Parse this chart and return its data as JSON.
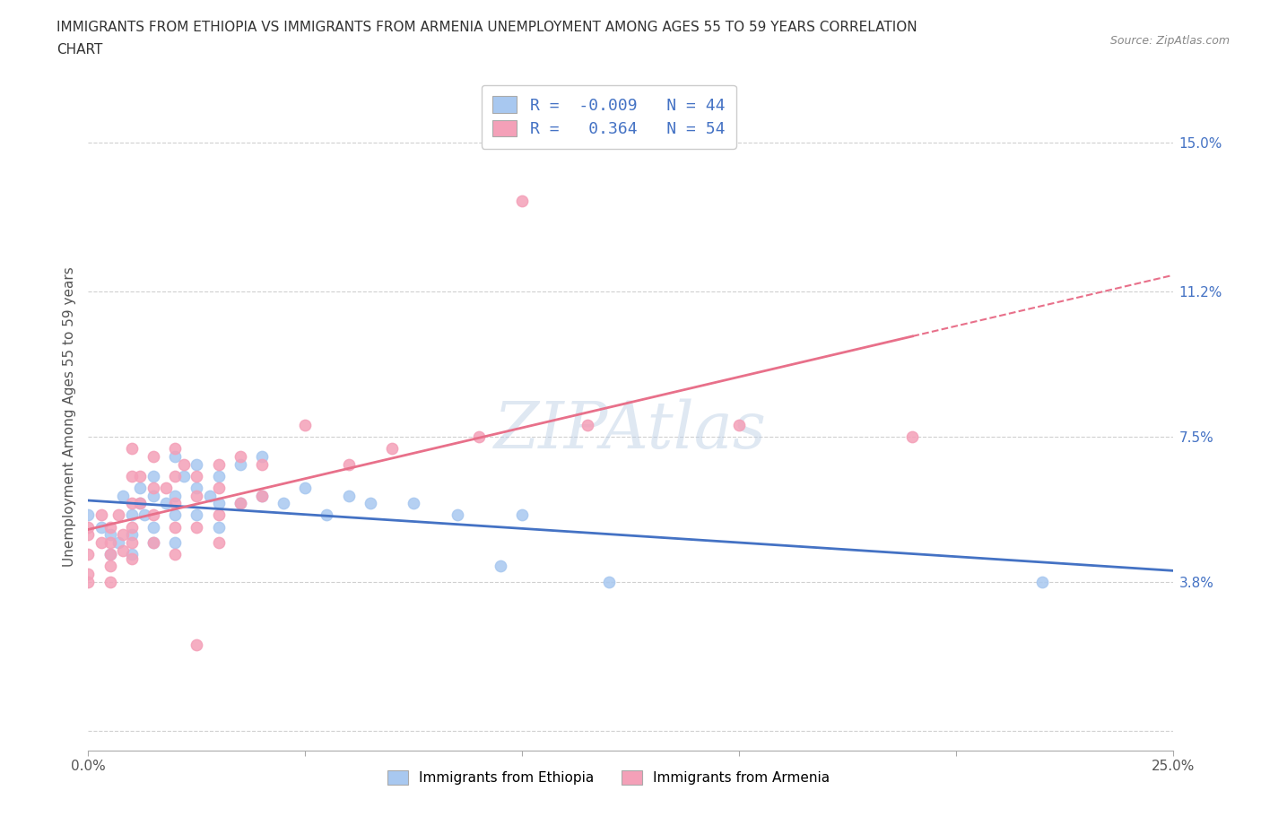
{
  "title_line1": "IMMIGRANTS FROM ETHIOPIA VS IMMIGRANTS FROM ARMENIA UNEMPLOYMENT AMONG AGES 55 TO 59 YEARS CORRELATION",
  "title_line2": "CHART",
  "source": "Source: ZipAtlas.com",
  "ylabel": "Unemployment Among Ages 55 to 59 years",
  "xlim": [
    0.0,
    0.25
  ],
  "ylim": [
    -0.005,
    0.165
  ],
  "xticks": [
    0.0,
    0.05,
    0.1,
    0.15,
    0.2,
    0.25
  ],
  "xticklabels": [
    "0.0%",
    "",
    "",
    "",
    "",
    "25.0%"
  ],
  "ytick_positions": [
    0.0,
    0.038,
    0.075,
    0.112,
    0.15
  ],
  "ytick_labels": [
    "",
    "3.8%",
    "7.5%",
    "11.2%",
    "15.0%"
  ],
  "ethiopia_color": "#a8c8f0",
  "armenia_color": "#f4a0b8",
  "ethiopia_line_color": "#4472c4",
  "armenia_line_color": "#e8708a",
  "ethiopia_R": -0.009,
  "ethiopia_N": 44,
  "armenia_R": 0.364,
  "armenia_N": 54,
  "watermark": "ZIPAtlas",
  "grid_color": "#d0d0d0",
  "ethiopia_scatter": [
    [
      0.0,
      0.055
    ],
    [
      0.003,
      0.052
    ],
    [
      0.005,
      0.05
    ],
    [
      0.005,
      0.045
    ],
    [
      0.007,
      0.048
    ],
    [
      0.008,
      0.06
    ],
    [
      0.01,
      0.055
    ],
    [
      0.01,
      0.05
    ],
    [
      0.01,
      0.045
    ],
    [
      0.012,
      0.062
    ],
    [
      0.012,
      0.058
    ],
    [
      0.013,
      0.055
    ],
    [
      0.015,
      0.065
    ],
    [
      0.015,
      0.06
    ],
    [
      0.015,
      0.052
    ],
    [
      0.015,
      0.048
    ],
    [
      0.018,
      0.058
    ],
    [
      0.02,
      0.07
    ],
    [
      0.02,
      0.06
    ],
    [
      0.02,
      0.055
    ],
    [
      0.02,
      0.048
    ],
    [
      0.022,
      0.065
    ],
    [
      0.025,
      0.068
    ],
    [
      0.025,
      0.062
    ],
    [
      0.025,
      0.055
    ],
    [
      0.028,
      0.06
    ],
    [
      0.03,
      0.065
    ],
    [
      0.03,
      0.058
    ],
    [
      0.03,
      0.052
    ],
    [
      0.035,
      0.068
    ],
    [
      0.035,
      0.058
    ],
    [
      0.04,
      0.07
    ],
    [
      0.04,
      0.06
    ],
    [
      0.045,
      0.058
    ],
    [
      0.05,
      0.062
    ],
    [
      0.055,
      0.055
    ],
    [
      0.06,
      0.06
    ],
    [
      0.065,
      0.058
    ],
    [
      0.075,
      0.058
    ],
    [
      0.085,
      0.055
    ],
    [
      0.095,
      0.042
    ],
    [
      0.1,
      0.055
    ],
    [
      0.12,
      0.038
    ],
    [
      0.22,
      0.038
    ]
  ],
  "armenia_scatter": [
    [
      0.0,
      0.052
    ],
    [
      0.0,
      0.05
    ],
    [
      0.0,
      0.045
    ],
    [
      0.0,
      0.04
    ],
    [
      0.0,
      0.038
    ],
    [
      0.003,
      0.055
    ],
    [
      0.003,
      0.048
    ],
    [
      0.005,
      0.052
    ],
    [
      0.005,
      0.048
    ],
    [
      0.005,
      0.045
    ],
    [
      0.005,
      0.042
    ],
    [
      0.005,
      0.038
    ],
    [
      0.007,
      0.055
    ],
    [
      0.008,
      0.05
    ],
    [
      0.008,
      0.046
    ],
    [
      0.01,
      0.072
    ],
    [
      0.01,
      0.065
    ],
    [
      0.01,
      0.058
    ],
    [
      0.01,
      0.052
    ],
    [
      0.01,
      0.048
    ],
    [
      0.01,
      0.044
    ],
    [
      0.012,
      0.065
    ],
    [
      0.012,
      0.058
    ],
    [
      0.015,
      0.07
    ],
    [
      0.015,
      0.062
    ],
    [
      0.015,
      0.055
    ],
    [
      0.015,
      0.048
    ],
    [
      0.018,
      0.062
    ],
    [
      0.02,
      0.072
    ],
    [
      0.02,
      0.065
    ],
    [
      0.02,
      0.058
    ],
    [
      0.02,
      0.052
    ],
    [
      0.02,
      0.045
    ],
    [
      0.022,
      0.068
    ],
    [
      0.025,
      0.065
    ],
    [
      0.025,
      0.06
    ],
    [
      0.025,
      0.052
    ],
    [
      0.025,
      0.022
    ],
    [
      0.03,
      0.068
    ],
    [
      0.03,
      0.062
    ],
    [
      0.03,
      0.055
    ],
    [
      0.03,
      0.048
    ],
    [
      0.035,
      0.07
    ],
    [
      0.035,
      0.058
    ],
    [
      0.04,
      0.068
    ],
    [
      0.04,
      0.06
    ],
    [
      0.05,
      0.078
    ],
    [
      0.06,
      0.068
    ],
    [
      0.07,
      0.072
    ],
    [
      0.09,
      0.075
    ],
    [
      0.1,
      0.135
    ],
    [
      0.115,
      0.078
    ],
    [
      0.15,
      0.078
    ],
    [
      0.19,
      0.075
    ]
  ]
}
